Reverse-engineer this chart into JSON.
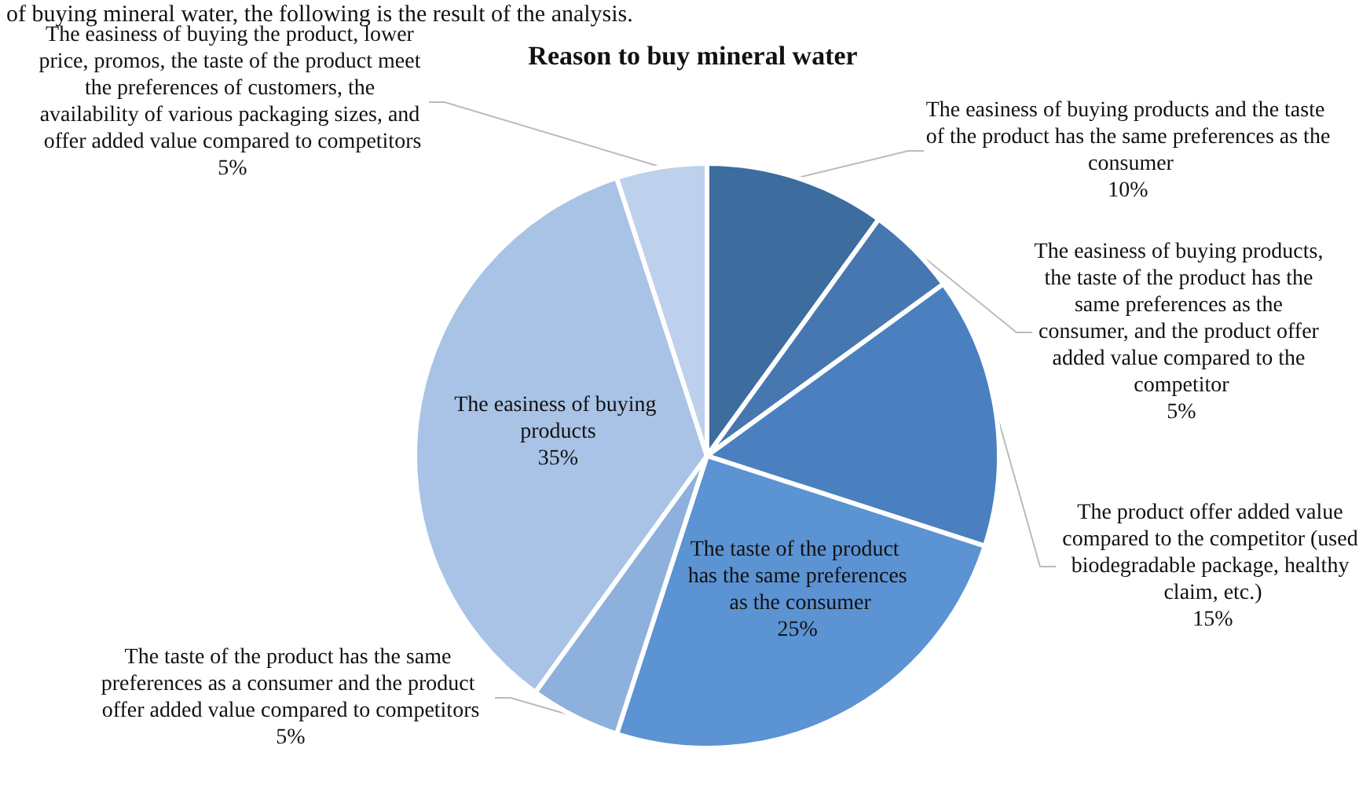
{
  "chart_data": {
    "type": "pie",
    "title": "Reason to buy mineral water",
    "annotations": [
      "of buying mineral water, the following is the result of the analysis."
    ],
    "categories": [
      "The easiness of buying products and the taste of the product has the same preferences as the consumer",
      "The easiness of buying products, the taste of the product has the same preferences as the consumer, and the product offer added value compared to the competitor",
      "The product offer added value compared to the competitor (used biodegradable package, healthy claim, etc.)",
      "The taste of the product has the same preferences as the consumer",
      "The taste of the product has the same preferences as a consumer and the product offer added value compared to competitors",
      "The easiness of buying products",
      "The easiness of buying the product, lower price, promos, the taste of the product meet the preferences of customers, the availability of various packaging sizes, and offer added value compared to competitors"
    ],
    "values": [
      10,
      5,
      15,
      25,
      5,
      35,
      5
    ],
    "colors": [
      "#3d6c9e",
      "#4677b0",
      "#4a80c0",
      "#5b93d3",
      "#8eb0dc",
      "#a9c3e6",
      "#bdd0ec"
    ],
    "value_labels": [
      "10%",
      "5%",
      "15%",
      "25%",
      "5%",
      "35%",
      "5%"
    ],
    "legend": false
  }
}
